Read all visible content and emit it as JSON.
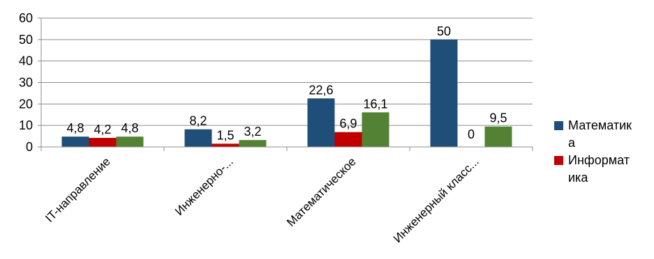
{
  "chart_data": {
    "type": "bar",
    "categories": [
      "IT-направление",
      "Инженерно-...",
      "Математическое",
      "Инженерный класс..."
    ],
    "series": [
      {
        "name": "Математика",
        "values": [
          4.8,
          8.2,
          22.6,
          50
        ],
        "color": "#1F4E79"
      },
      {
        "name": "Информатика",
        "values": [
          4.2,
          1.5,
          6.9,
          0
        ],
        "color": "#C00000"
      },
      {
        "values": [
          4.8,
          3.2,
          16.1,
          9.5
        ],
        "color": "#548235"
      }
    ],
    "data_labels": [
      [
        "4,8",
        "8,2",
        "22,6",
        "50"
      ],
      [
        "4,2",
        "1,5",
        "6,9",
        "0"
      ],
      [
        "4,8",
        "3,2",
        "16,1",
        "9,5"
      ]
    ],
    "ylim": [
      0,
      60
    ],
    "yticks": [
      "0",
      "10",
      "20",
      "30",
      "40",
      "50",
      "60"
    ],
    "legend": {
      "position": "right",
      "entries": [
        {
          "line1": "Математик",
          "line2": "а"
        },
        {
          "line1": "Информат",
          "line2": "ика"
        }
      ]
    },
    "grid": true,
    "title": "",
    "xlabel": "",
    "ylabel": ""
  }
}
